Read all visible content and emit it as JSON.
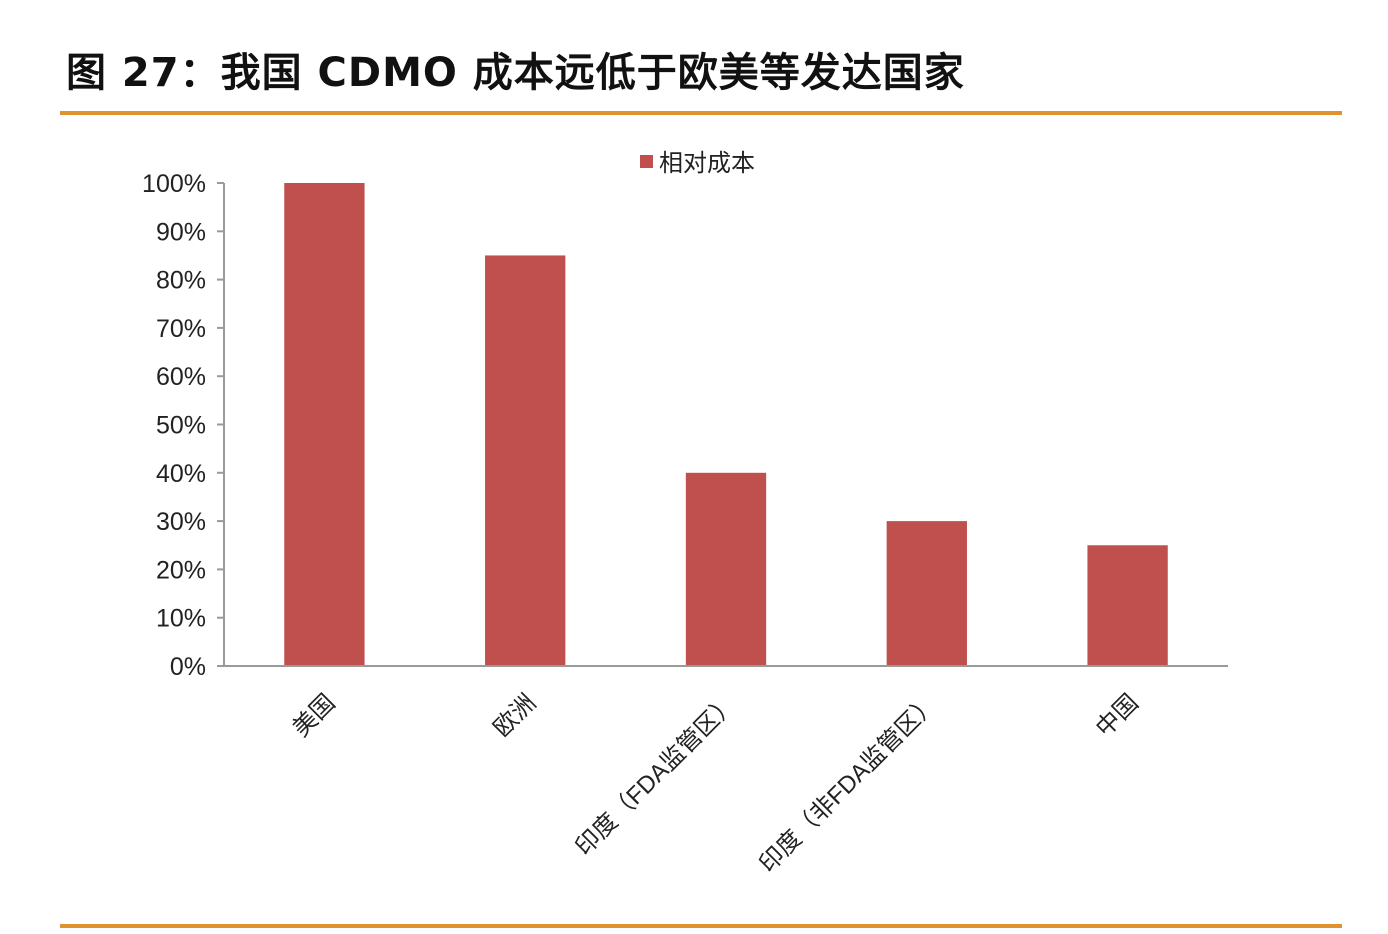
{
  "figure": {
    "title": "图 27：我国 CDMO 成本远低于欧美等发达国家",
    "accent_color": "#E0922E"
  },
  "chart_data": {
    "type": "bar",
    "categories": [
      "美国",
      "欧洲",
      "印度（FDA监管区）",
      "印度（非FDA监管区）",
      "中国"
    ],
    "series": [
      {
        "name": "相对成本",
        "values": [
          100,
          85,
          40,
          30,
          25
        ],
        "color": "#C0504D"
      }
    ],
    "y_ticks": [
      "0%",
      "10%",
      "20%",
      "30%",
      "40%",
      "50%",
      "60%",
      "70%",
      "80%",
      "90%",
      "100%"
    ],
    "ylim": [
      0,
      100
    ],
    "y_unit": "%",
    "legend_position": "top",
    "grid": false
  }
}
